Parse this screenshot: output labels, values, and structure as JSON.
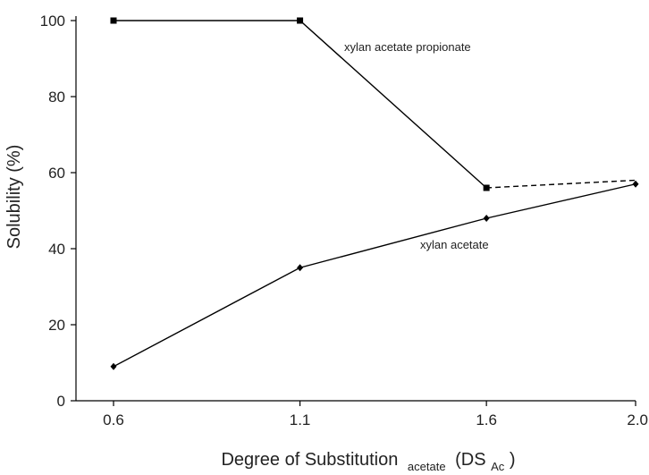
{
  "chart_data": {
    "type": "line",
    "xlabel": {
      "main": "Degree of Substitution",
      "sub": "acetate",
      "paren_open": "(DS",
      "paren_sub": "Ac",
      "paren_close": ")"
    },
    "ylabel": "Solubility (%)",
    "x_ticks": [
      0.6,
      1.1,
      1.6,
      2.0
    ],
    "y_ticks": [
      0,
      20,
      40,
      60,
      80,
      100
    ],
    "xlim": [
      0.6,
      2.0
    ],
    "ylim": [
      0,
      100
    ],
    "grid": false,
    "series": [
      {
        "name": "xylan acetate propionate",
        "marker": "square",
        "x": [
          0.6,
          1.1,
          1.6
        ],
        "y": [
          100,
          100,
          56
        ],
        "dashed_extension": {
          "x": [
            1.6,
            2.0
          ],
          "y": [
            56,
            58
          ]
        }
      },
      {
        "name": "xylan acetate",
        "marker": "diamond",
        "x": [
          0.6,
          1.1,
          1.6,
          2.0
        ],
        "y": [
          9,
          35,
          48,
          57
        ]
      }
    ]
  }
}
